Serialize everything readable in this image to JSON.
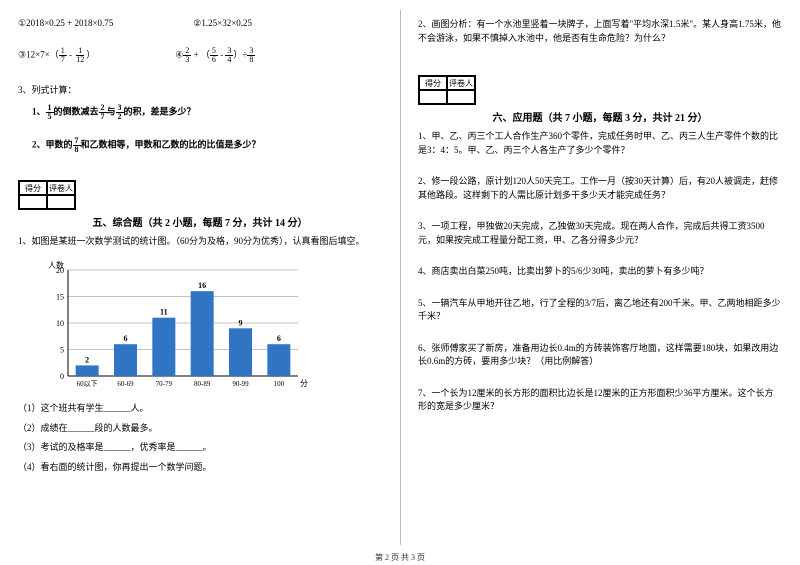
{
  "left": {
    "q1": "①2018×0.25 + 2018×0.75",
    "q2": "②1.25×32×0.25",
    "q3_pre": "③12×7×（",
    "q3_f1n": "1",
    "q3_f1d": "7",
    "q3_mid": " - ",
    "q3_f2n": "1",
    "q3_f2d": "12",
    "q3_post": "）",
    "q4_pre": "④",
    "q4_f1n": "2",
    "q4_f1d": "3",
    "q4_mid1": " + （",
    "q4_f2n": "5",
    "q4_f2d": "6",
    "q4_mid2": " - ",
    "q4_f3n": "3",
    "q4_f3d": "4",
    "q4_mid3": "）÷",
    "q4_f4n": "3",
    "q4_f4d": "8",
    "p3": "3、列式计算：",
    "p3_1a": "1、",
    "p3_1f1n": "1",
    "p3_1f1d": "5",
    "p3_1mid": "的倒数减去",
    "p3_1f2n": "2",
    "p3_1f2d": "7",
    "p3_1mid2": "与",
    "p3_1f3n": "3",
    "p3_1f3d": "2",
    "p3_1end": "的积，差是多少？",
    "p3_2a": "2、甲数的",
    "p3_2fn": "7",
    "p3_2fd": "8",
    "p3_2end": "和乙数相等，甲数和乙数的比的比值是多少？",
    "score_l1": "得分",
    "score_l2": "评卷人",
    "sec5_title": "五、综合题（共 2 小题，每题 7 分，共计 14 分）",
    "sec5_q1": "1、如图是某班一次数学测试的统计图。（60分为及格，90分为优秀），认真看图后填空。",
    "chart": {
      "ylabel": "人数",
      "xlabel": "分数",
      "categories": [
        "60以下",
        "60-69",
        "70-79",
        "80-89",
        "90-99",
        "100"
      ],
      "values": [
        2,
        6,
        11,
        16,
        9,
        6
      ],
      "bar_color": "#2f75c3",
      "grid_color": "#888888",
      "bg": "#ffffff",
      "yticks": [
        0,
        5,
        10,
        15,
        20
      ],
      "label_fontsize": 8
    },
    "sub1": "（1）这个班共有学生______人。",
    "sub2": "（2）成绩在______段的人数最多。",
    "sub3": "（3）考试的及格率是______，优秀率是______。",
    "sub4": "（4）看右面的统计图，你再提出一个数学问题。"
  },
  "right": {
    "q2": "2、画图分析：有一个水池里竖着一块牌子，上面写着\"平均水深1.5米\"。某人身高1.75米，他不会游泳，如果不慎掉入水池中，他是否有生命危险？为什么？",
    "score_l1": "得分",
    "score_l2": "评卷人",
    "sec6_title": "六、应用题（共 7 小题，每题 3 分，共计 21 分）",
    "aq1": "1、甲、乙、丙三个工人合作生产360个零件，完成任务时甲、乙、丙三人生产零件个数的比是3：4：5。甲、乙、丙三个人各生产了多少个零件？",
    "aq2": "2、修一段公路，原计划120人50天完工。工作一月（按30天计算）后，有20人被调走，赶修其他路段。这样剩下的人需比原计划多干多少天才能完成任务？",
    "aq3": "3、一项工程，甲独做20天完成，乙独做30天完成。现在两人合作，完成后共得工资3500元，如果按完成工程量分配工资，甲、乙各分得多少元？",
    "aq4": "4、商店卖出白菜250吨，比卖出萝卜的5/6少30吨，卖出的萝卜有多少吨？",
    "aq5": "5、一辆汽车从甲地开往乙地，行了全程的3/7后，离乙地还有200千米。甲、乙两地相距多少千米？",
    "aq6": "6、张师傅家买了新房，准备用边长0.4m的方砖装饰客厅地面，这样需要180块，如果改用边长0.6m的方砖，要用多少块？（用比例解答）",
    "aq7": "7、一个长为12厘米的长方形的面积比边长是12厘米的正方形面积少36平方厘米。这个长方形的宽是多少厘米？"
  },
  "footer": "第 2 页 共 3 页"
}
